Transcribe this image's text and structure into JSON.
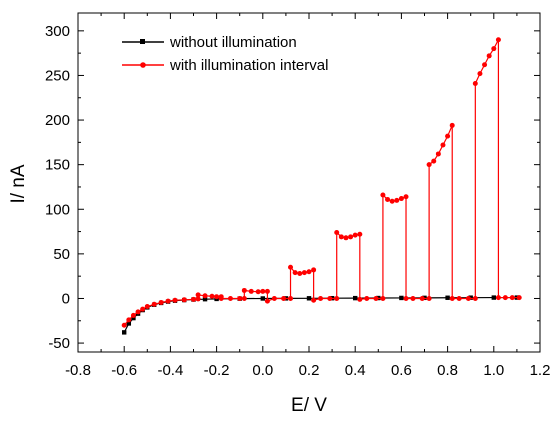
{
  "chart_data": {
    "type": "line",
    "xlabel": "E/ V",
    "ylabel": "I/ nA",
    "xlim": [
      -0.8,
      1.2
    ],
    "ylim": [
      -60,
      320
    ],
    "x_ticks": [
      -0.8,
      -0.6,
      -0.4,
      -0.2,
      0.0,
      0.2,
      0.4,
      0.6,
      0.8,
      1.0,
      1.2
    ],
    "x_tick_labels": [
      "-0.8",
      "-0.6",
      "-0.4",
      "-0.2",
      "0.0",
      "0.2",
      "0.4",
      "0.6",
      "0.8",
      "1.0",
      "1.2"
    ],
    "y_ticks": [
      -50,
      0,
      50,
      100,
      150,
      200,
      250,
      300
    ],
    "y_tick_labels": [
      "-50",
      "0",
      "50",
      "100",
      "150",
      "200",
      "250",
      "300"
    ],
    "legend_position": "top-left",
    "grid": false,
    "series": [
      {
        "name": "without illumination",
        "color": "#000000",
        "marker": "square",
        "points": [
          [
            -0.6,
            -38
          ],
          [
            -0.58,
            -28
          ],
          [
            -0.56,
            -22
          ],
          [
            -0.54,
            -17
          ],
          [
            -0.52,
            -13
          ],
          [
            -0.5,
            -10
          ],
          [
            -0.47,
            -7
          ],
          [
            -0.44,
            -5
          ],
          [
            -0.41,
            -3.5
          ],
          [
            -0.38,
            -2.5
          ],
          [
            -0.34,
            -1.8
          ],
          [
            -0.3,
            -1.2
          ],
          [
            -0.25,
            -0.8
          ],
          [
            -0.2,
            -0.5
          ],
          [
            -0.1,
            -0.2
          ],
          [
            0.0,
            0
          ],
          [
            0.1,
            0.1
          ],
          [
            0.2,
            0.2
          ],
          [
            0.3,
            0.3
          ],
          [
            0.4,
            0.4
          ],
          [
            0.5,
            0.5
          ],
          [
            0.6,
            0.6
          ],
          [
            0.7,
            0.7
          ],
          [
            0.8,
            0.8
          ],
          [
            0.9,
            0.9
          ],
          [
            1.0,
            1.0
          ],
          [
            1.1,
            1.0
          ]
        ]
      },
      {
        "name": "with illumination interval",
        "color": "#ff0000",
        "marker": "circle",
        "points": [
          [
            -0.6,
            -30
          ],
          [
            -0.58,
            -24
          ],
          [
            -0.56,
            -19
          ],
          [
            -0.54,
            -15
          ],
          [
            -0.52,
            -12
          ],
          [
            -0.5,
            -9
          ],
          [
            -0.47,
            -6.5
          ],
          [
            -0.44,
            -4.5
          ],
          [
            -0.41,
            -3
          ],
          [
            -0.38,
            -2
          ],
          [
            -0.34,
            -1.5
          ],
          [
            -0.3,
            -1
          ],
          [
            -0.28,
            -0.5
          ],
          [
            -0.28,
            4
          ],
          [
            -0.25,
            3
          ],
          [
            -0.22,
            2.5
          ],
          [
            -0.2,
            2
          ],
          [
            -0.18,
            2
          ],
          [
            -0.18,
            0
          ],
          [
            -0.14,
            0
          ],
          [
            -0.1,
            0
          ],
          [
            -0.08,
            0
          ],
          [
            -0.08,
            9
          ],
          [
            -0.05,
            8
          ],
          [
            -0.02,
            7.5
          ],
          [
            0.0,
            8
          ],
          [
            0.02,
            8
          ],
          [
            0.02,
            -3
          ],
          [
            0.05,
            0
          ],
          [
            0.09,
            0
          ],
          [
            0.12,
            0
          ],
          [
            0.12,
            35
          ],
          [
            0.14,
            29
          ],
          [
            0.16,
            28
          ],
          [
            0.18,
            29
          ],
          [
            0.2,
            30
          ],
          [
            0.22,
            32
          ],
          [
            0.22,
            -2
          ],
          [
            0.25,
            0
          ],
          [
            0.29,
            0
          ],
          [
            0.32,
            0
          ],
          [
            0.32,
            74
          ],
          [
            0.34,
            69
          ],
          [
            0.36,
            68
          ],
          [
            0.38,
            69
          ],
          [
            0.4,
            71
          ],
          [
            0.42,
            72
          ],
          [
            0.42,
            -1
          ],
          [
            0.45,
            0
          ],
          [
            0.49,
            0
          ],
          [
            0.52,
            0
          ],
          [
            0.52,
            116
          ],
          [
            0.54,
            111
          ],
          [
            0.56,
            109
          ],
          [
            0.58,
            110
          ],
          [
            0.6,
            112
          ],
          [
            0.62,
            114
          ],
          [
            0.62,
            0
          ],
          [
            0.65,
            0
          ],
          [
            0.69,
            0
          ],
          [
            0.72,
            0
          ],
          [
            0.72,
            150
          ],
          [
            0.74,
            154
          ],
          [
            0.76,
            162
          ],
          [
            0.78,
            172
          ],
          [
            0.8,
            182
          ],
          [
            0.82,
            194
          ],
          [
            0.82,
            0
          ],
          [
            0.85,
            0
          ],
          [
            0.89,
            0
          ],
          [
            0.92,
            0
          ],
          [
            0.92,
            241
          ],
          [
            0.94,
            252
          ],
          [
            0.96,
            262
          ],
          [
            0.98,
            272
          ],
          [
            1.0,
            280
          ],
          [
            1.02,
            290
          ],
          [
            1.02,
            1
          ],
          [
            1.05,
            1
          ],
          [
            1.08,
            1
          ],
          [
            1.11,
            1
          ]
        ]
      }
    ]
  }
}
